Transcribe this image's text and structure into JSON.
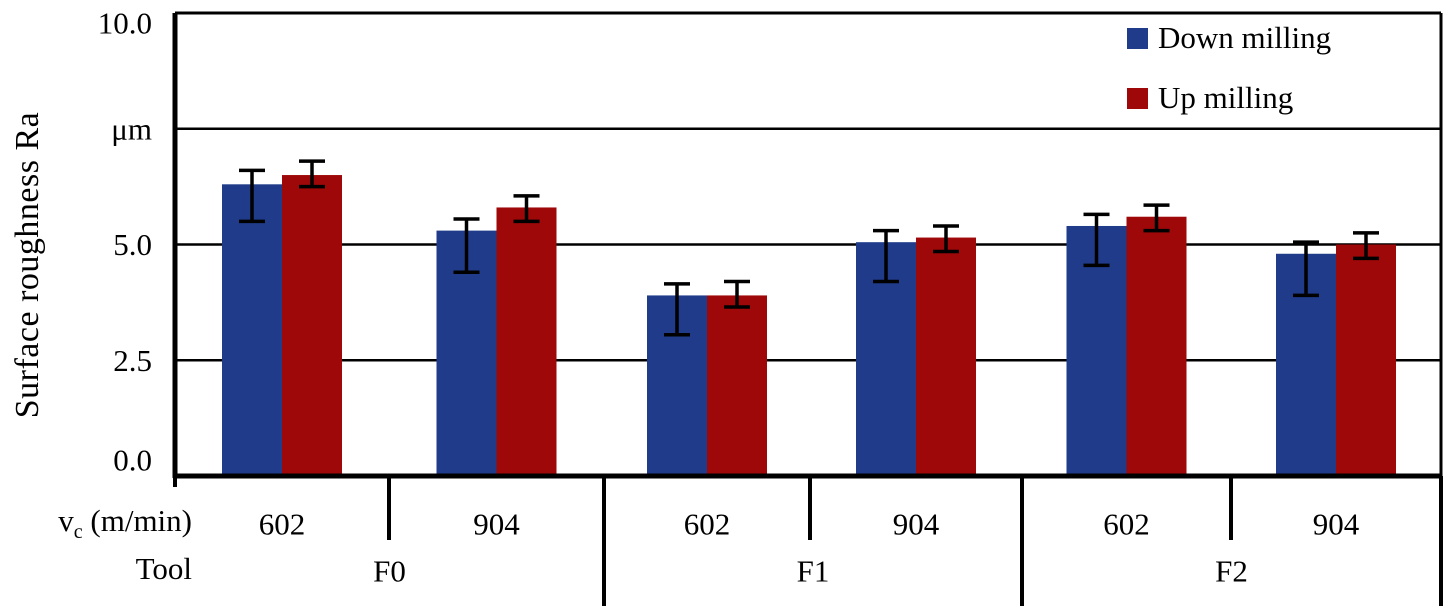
{
  "chart_data": {
    "type": "bar",
    "title": "",
    "ylabel": "Surface roughness Ra",
    "y_unit_label": "μm",
    "ylim": [
      0,
      10
    ],
    "grid": true,
    "legend_position": "top-right-inside",
    "yticks": [
      {
        "value": 10,
        "label": "10.0"
      },
      {
        "value": 7.5,
        "label": "μm"
      },
      {
        "value": 5,
        "label": "5.0"
      },
      {
        "value": 2.5,
        "label": "2.5"
      },
      {
        "value": 0,
        "label": "0.0"
      }
    ],
    "x_level_1_label": {
      "prefix": "v",
      "subscript": "c",
      "suffix": " (m/min)"
    },
    "x_level_2_label": "Tool",
    "groups": [
      {
        "tool": "F0",
        "speeds": [
          "602",
          "904"
        ]
      },
      {
        "tool": "F1",
        "speeds": [
          "602",
          "904"
        ]
      },
      {
        "tool": "F2",
        "speeds": [
          "602",
          "904"
        ]
      }
    ],
    "series": [
      {
        "name": "Down milling",
        "color": "#1F3B8A",
        "values": [
          6.3,
          5.3,
          3.9,
          5.05,
          5.4,
          4.8
        ],
        "error_high": [
          6.6,
          5.55,
          4.15,
          5.3,
          5.65,
          5.05
        ],
        "error_low": [
          5.5,
          4.4,
          3.05,
          4.2,
          4.55,
          3.9
        ]
      },
      {
        "name": "Up milling",
        "color": "#9E0808",
        "values": [
          6.5,
          5.8,
          3.9,
          5.15,
          5.6,
          5.0
        ],
        "error_high": [
          6.8,
          6.05,
          4.2,
          5.4,
          5.85,
          5.25
        ],
        "error_low": [
          6.25,
          5.5,
          3.65,
          4.85,
          5.3,
          4.7
        ]
      }
    ]
  }
}
